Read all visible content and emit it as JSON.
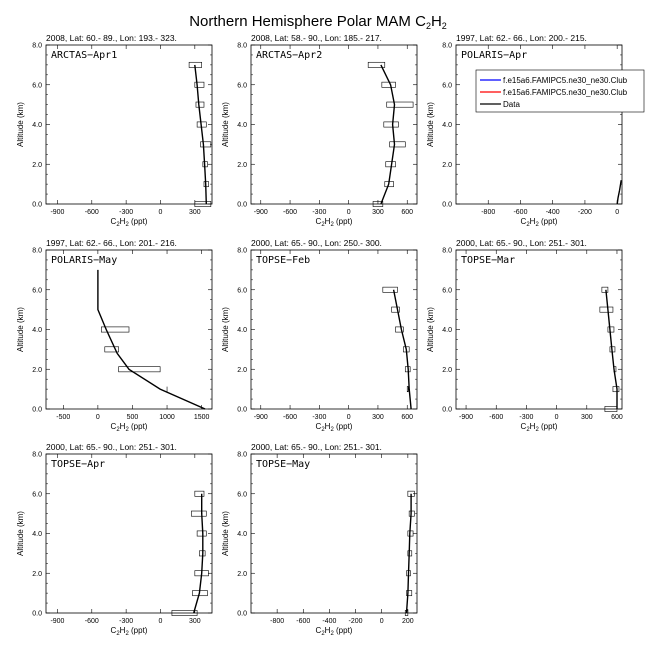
{
  "figure": {
    "title": "Northern Hemisphere Polar MAM C",
    "title_species": "2",
    "title_rest": "H",
    "title_species2": "2",
    "ylabel": "Altitude (km)",
    "xlabel_main": "C",
    "xlabel_sub": "2",
    "xlabel_mid": "H",
    "xlabel_sub2": "2",
    "xlabel_unit": " (ppt)"
  },
  "legend": {
    "entries": [
      {
        "label": "f.e15a6.FAMIPC5.ne30_ne30.Club",
        "color": "#0000ff"
      },
      {
        "label": "f.e15a6.FAMIPC5.ne30_ne30.Club",
        "color": "#ff0000"
      },
      {
        "label": "Data",
        "color": "#000000"
      }
    ]
  },
  "chart_data": [
    {
      "type": "line",
      "header": "2008, Lat:  60.- 89., Lon: 193.- 323.",
      "name": "ARCTAS−Apr1",
      "xlim": [
        -1000,
        450
      ],
      "xticks": [
        -900,
        -600,
        -300,
        0,
        300
      ],
      "ylim": [
        0,
        8
      ],
      "yticks": [
        "0.0",
        "2.0",
        "4.0",
        "6.0",
        "8.0"
      ],
      "line": [
        [
          400,
          0
        ],
        [
          395,
          1
        ],
        [
          385,
          2
        ],
        [
          375,
          3
        ],
        [
          355,
          4
        ],
        [
          335,
          5
        ],
        [
          320,
          6
        ],
        [
          300,
          7
        ]
      ],
      "boxes": [
        [
          300,
          440,
          0
        ],
        [
          380,
          420,
          1
        ],
        [
          370,
          410,
          2
        ],
        [
          350,
          440,
          3
        ],
        [
          320,
          400,
          4
        ],
        [
          310,
          380,
          5
        ],
        [
          300,
          380,
          6
        ],
        [
          250,
          360,
          7
        ]
      ]
    },
    {
      "type": "line",
      "header": "2008, Lat:  58.- 90., Lon: 185.- 217.",
      "name": "ARCTAS−Apr2",
      "xlim": [
        -1000,
        700
      ],
      "xticks": [
        -900,
        -600,
        -300,
        0,
        300,
        600
      ],
      "ylim": [
        0,
        8
      ],
      "yticks": [
        "0.0",
        "2.0",
        "4.0",
        "6.0",
        "8.0"
      ],
      "line": [
        [
          330,
          0
        ],
        [
          410,
          1
        ],
        [
          440,
          2
        ],
        [
          470,
          3
        ],
        [
          450,
          4
        ],
        [
          470,
          5
        ],
        [
          430,
          6
        ],
        [
          330,
          7
        ]
      ],
      "boxes": [
        [
          250,
          350,
          0
        ],
        [
          370,
          460,
          1
        ],
        [
          380,
          480,
          2
        ],
        [
          420,
          580,
          3
        ],
        [
          360,
          510,
          4
        ],
        [
          390,
          660,
          5
        ],
        [
          340,
          480,
          6
        ],
        [
          200,
          370,
          7
        ]
      ]
    },
    {
      "type": "line",
      "header": "1997, Lat: 62.- 66., Lon: 200.- 215.",
      "name": "POLARIS−Apr",
      "xlim": [
        -1000,
        30
      ],
      "xticks": [
        -800,
        -600,
        -400,
        -200,
        0
      ],
      "ylim": [
        0,
        8
      ],
      "yticks": [
        "0.0",
        "2.0",
        "4.0",
        "6.0",
        "8.0"
      ],
      "line": [
        [
          0,
          0
        ],
        [
          5,
          0.3
        ],
        [
          15,
          0.7
        ],
        [
          25,
          1.2
        ]
      ],
      "boxes": []
    },
    {
      "type": "line",
      "header": "1997, Lat: 62.- 66., Lon: 201.- 216.",
      "name": "POLARIS−May",
      "xlim": [
        -750,
        1650
      ],
      "xticks": [
        -500,
        0,
        500,
        1000,
        1500
      ],
      "ylim": [
        0,
        8
      ],
      "yticks": [
        "0.0",
        "2.0",
        "4.0",
        "6.0",
        "8.0"
      ],
      "line": [
        [
          1550,
          0
        ],
        [
          900,
          1
        ],
        [
          450,
          2
        ],
        [
          280,
          2.8
        ],
        [
          120,
          4
        ],
        [
          0,
          5
        ],
        [
          0,
          6
        ],
        [
          0,
          7
        ]
      ],
      "boxes": [
        [
          300,
          900,
          2
        ],
        [
          100,
          300,
          3
        ],
        [
          50,
          450,
          4
        ]
      ],
      "ticks": [
        [
          1000,
          1
        ]
      ]
    },
    {
      "type": "line",
      "header": "2000, Lat: 65.- 90., Lon: 250.- 300.",
      "name": "TOPSE−Feb",
      "xlim": [
        -1000,
        700
      ],
      "xticks": [
        -900,
        -600,
        -300,
        0,
        300,
        600
      ],
      "ylim": [
        0,
        8
      ],
      "yticks": [
        "0.0",
        "2.0",
        "4.0",
        "6.0",
        "8.0"
      ],
      "line": [
        [
          640,
          0
        ],
        [
          620,
          1
        ],
        [
          610,
          2
        ],
        [
          590,
          3
        ],
        [
          540,
          4
        ],
        [
          500,
          5
        ],
        [
          460,
          6
        ]
      ],
      "boxes": [
        [
          600,
          600,
          1
        ],
        [
          580,
          630,
          2
        ],
        [
          560,
          620,
          3
        ],
        [
          480,
          560,
          4
        ],
        [
          440,
          520,
          5
        ],
        [
          350,
          500,
          6
        ]
      ]
    },
    {
      "type": "line",
      "header": "2000, Lat: 65.- 90., Lon: 251.- 301.",
      "name": "TOPSE−Mar",
      "xlim": [
        -1000,
        650
      ],
      "xticks": [
        -900,
        -600,
        -300,
        0,
        300,
        600
      ],
      "ylim": [
        0,
        8
      ],
      "yticks": [
        "0.0",
        "2.0",
        "4.0",
        "6.0",
        "8.0"
      ],
      "line": [
        [
          600,
          0
        ],
        [
          600,
          1
        ],
        [
          570,
          2
        ],
        [
          550,
          3
        ],
        [
          530,
          4
        ],
        [
          510,
          5
        ],
        [
          490,
          6
        ]
      ],
      "boxes": [
        [
          480,
          600,
          0
        ],
        [
          560,
          620,
          1
        ],
        [
          570,
          590,
          2
        ],
        [
          530,
          580,
          3
        ],
        [
          510,
          570,
          4
        ],
        [
          430,
          560,
          5
        ],
        [
          450,
          510,
          6
        ]
      ]
    },
    {
      "type": "line",
      "header": "2000, Lat: 65.- 90., Lon: 251.- 301.",
      "name": "TOPSE−Apr",
      "xlim": [
        -1000,
        450
      ],
      "xticks": [
        -900,
        -600,
        -300,
        0,
        300
      ],
      "ylim": [
        0,
        8
      ],
      "yticks": [
        "0.0",
        "2.0",
        "4.0",
        "6.0",
        "8.0"
      ],
      "line": [
        [
          290,
          0
        ],
        [
          340,
          1
        ],
        [
          360,
          2
        ],
        [
          370,
          3
        ],
        [
          370,
          4
        ],
        [
          360,
          5
        ],
        [
          360,
          6
        ]
      ],
      "boxes": [
        [
          100,
          320,
          0
        ],
        [
          280,
          410,
          1
        ],
        [
          300,
          420,
          2
        ],
        [
          340,
          390,
          3
        ],
        [
          320,
          400,
          4
        ],
        [
          270,
          400,
          5
        ],
        [
          300,
          380,
          6
        ]
      ]
    },
    {
      "type": "line",
      "header": "2000, Lat: 65.- 90., Lon: 251.- 301.",
      "name": "TOPSE−May",
      "xlim": [
        -1000,
        270
      ],
      "xticks": [
        -800,
        -600,
        -400,
        -200,
        0,
        200
      ],
      "ylim": [
        0,
        8
      ],
      "yticks": [
        "0.0",
        "2.0",
        "4.0",
        "6.0",
        "8.0"
      ],
      "line": [
        [
          190,
          0
        ],
        [
          200,
          1
        ],
        [
          205,
          2
        ],
        [
          210,
          3
        ],
        [
          215,
          4
        ],
        [
          225,
          5
        ],
        [
          225,
          6
        ]
      ],
      "boxes": [
        [
          180,
          200,
          0
        ],
        [
          190,
          230,
          1
        ],
        [
          190,
          220,
          2
        ],
        [
          200,
          230,
          3
        ],
        [
          200,
          240,
          4
        ],
        [
          210,
          250,
          5
        ],
        [
          200,
          250,
          6
        ]
      ]
    }
  ]
}
